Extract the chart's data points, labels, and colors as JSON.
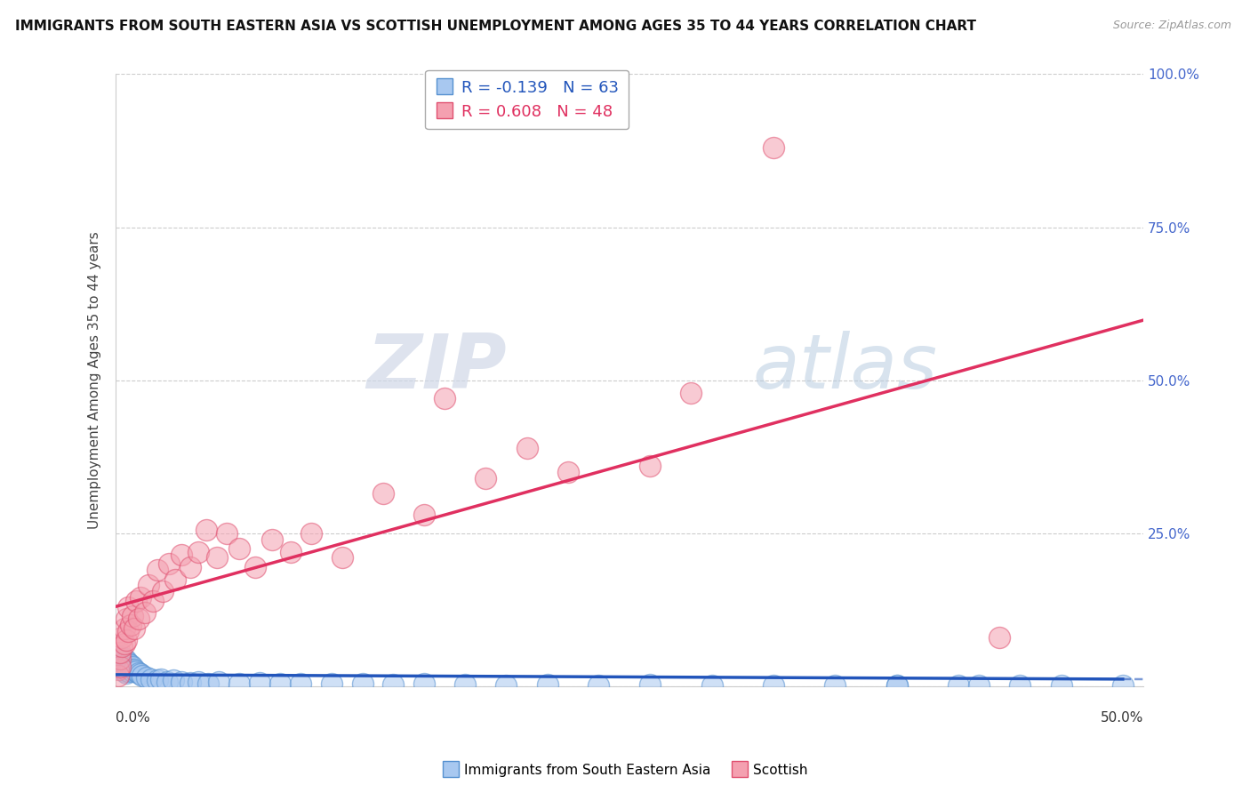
{
  "title": "IMMIGRANTS FROM SOUTH EASTERN ASIA VS SCOTTISH UNEMPLOYMENT AMONG AGES 35 TO 44 YEARS CORRELATION CHART",
  "source": "Source: ZipAtlas.com",
  "ylabel": "Unemployment Among Ages 35 to 44 years",
  "xlim": [
    0.0,
    0.5
  ],
  "ylim": [
    0.0,
    1.0
  ],
  "yticks": [
    0.0,
    0.25,
    0.5,
    0.75,
    1.0
  ],
  "ytick_labels": [
    "",
    "25.0%",
    "50.0%",
    "75.0%",
    "100.0%"
  ],
  "blue_R": -0.139,
  "blue_N": 63,
  "pink_R": 0.608,
  "pink_N": 48,
  "blue_color": "#a8c8f0",
  "pink_color": "#f4a0b0",
  "blue_edge_color": "#5590d0",
  "pink_edge_color": "#e05070",
  "blue_line_color": "#2255bb",
  "pink_line_color": "#e03060",
  "watermark_zip": "ZIP",
  "watermark_atlas": "atlas",
  "legend_label_blue": "Immigrants from South Eastern Asia",
  "legend_label_pink": "Scottish",
  "blue_x": [
    0.001,
    0.001,
    0.002,
    0.002,
    0.002,
    0.003,
    0.003,
    0.003,
    0.003,
    0.004,
    0.004,
    0.004,
    0.004,
    0.005,
    0.005,
    0.005,
    0.005,
    0.006,
    0.006,
    0.006,
    0.007,
    0.007,
    0.008,
    0.008,
    0.009,
    0.01,
    0.011,
    0.012,
    0.013,
    0.015,
    0.017,
    0.02,
    0.022,
    0.025,
    0.028,
    0.032,
    0.036,
    0.04,
    0.045,
    0.05,
    0.06,
    0.07,
    0.08,
    0.09,
    0.105,
    0.12,
    0.135,
    0.15,
    0.17,
    0.19,
    0.21,
    0.235,
    0.26,
    0.29,
    0.32,
    0.35,
    0.38,
    0.41,
    0.44,
    0.38,
    0.42,
    0.46,
    0.49
  ],
  "blue_y": [
    0.045,
    0.038,
    0.05,
    0.042,
    0.035,
    0.048,
    0.04,
    0.032,
    0.028,
    0.045,
    0.038,
    0.03,
    0.025,
    0.042,
    0.035,
    0.028,
    0.022,
    0.038,
    0.03,
    0.025,
    0.035,
    0.028,
    0.032,
    0.025,
    0.028,
    0.025,
    0.022,
    0.02,
    0.018,
    0.015,
    0.012,
    0.01,
    0.012,
    0.008,
    0.01,
    0.008,
    0.006,
    0.008,
    0.005,
    0.008,
    0.005,
    0.006,
    0.004,
    0.005,
    0.004,
    0.005,
    0.003,
    0.004,
    0.003,
    0.002,
    0.003,
    0.002,
    0.003,
    0.002,
    0.001,
    0.002,
    0.001,
    0.002,
    0.001,
    0.002,
    0.001,
    0.001,
    0.001
  ],
  "pink_x": [
    0.001,
    0.001,
    0.002,
    0.002,
    0.002,
    0.003,
    0.003,
    0.004,
    0.004,
    0.005,
    0.005,
    0.006,
    0.006,
    0.007,
    0.008,
    0.009,
    0.01,
    0.011,
    0.012,
    0.014,
    0.016,
    0.018,
    0.02,
    0.023,
    0.026,
    0.029,
    0.032,
    0.036,
    0.04,
    0.044,
    0.049,
    0.054,
    0.06,
    0.068,
    0.076,
    0.085,
    0.095,
    0.11,
    0.13,
    0.15,
    0.18,
    0.22,
    0.26,
    0.16,
    0.2,
    0.28,
    0.32,
    0.43
  ],
  "pink_y": [
    0.028,
    0.018,
    0.045,
    0.032,
    0.055,
    0.065,
    0.08,
    0.07,
    0.095,
    0.075,
    0.11,
    0.09,
    0.13,
    0.1,
    0.115,
    0.095,
    0.14,
    0.11,
    0.145,
    0.12,
    0.165,
    0.14,
    0.19,
    0.155,
    0.2,
    0.175,
    0.215,
    0.195,
    0.22,
    0.255,
    0.21,
    0.25,
    0.225,
    0.195,
    0.24,
    0.22,
    0.25,
    0.21,
    0.315,
    0.28,
    0.34,
    0.35,
    0.36,
    0.47,
    0.39,
    0.48,
    0.88,
    0.08
  ]
}
